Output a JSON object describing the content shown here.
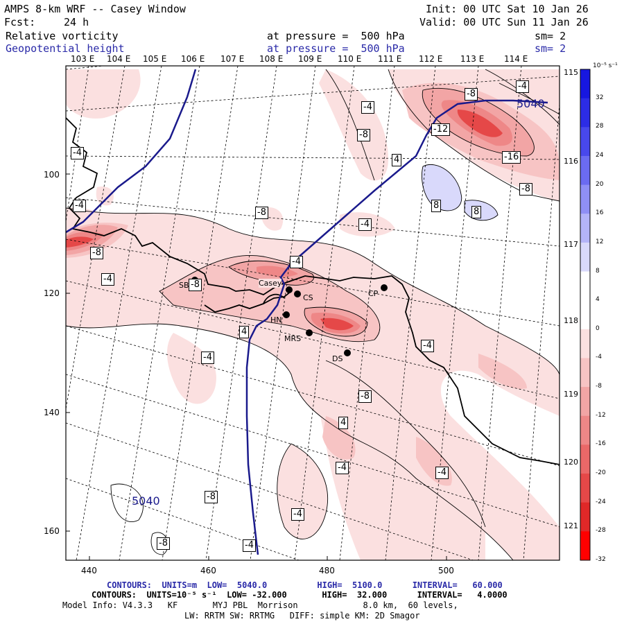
{
  "header": {
    "model_title": "AMPS 8-km WRF -- Casey Window",
    "init": "Init: 00 UTC Sat 10 Jan 26",
    "fcst_label": "Fcst:",
    "fcst_value": "24 h",
    "valid": "Valid: 00 UTC Sun 11 Jan 26",
    "field1_name": "Relative vorticity",
    "field1_level": "at pressure =  500 hPa",
    "field1_sm": "sm= 2",
    "field2_name": "Geopotential height",
    "field2_level": "at pressure =  500 hPa",
    "field2_sm": "sm= 2"
  },
  "axes": {
    "top_lon": [
      "103 E",
      "104 E",
      "105 E",
      "106 E",
      "107 E",
      "108 E",
      "109 E",
      "110 E",
      "111 E",
      "112 E",
      "113 E",
      "114 E"
    ],
    "right_lat": [
      "115 E",
      "116 E",
      "117 E",
      "118 E",
      "119 E",
      "120 E",
      "121 E"
    ],
    "left_y": [
      "100",
      "120",
      "140",
      "160"
    ],
    "bottom_x": [
      "440",
      "460",
      "480",
      "500"
    ]
  },
  "colorbar": {
    "units": "10⁻⁵ s⁻¹",
    "ticks": [
      "32",
      "28",
      "24",
      "20",
      "16",
      "12",
      "8",
      "4",
      "0",
      "-4",
      "-8",
      "-12",
      "-16",
      "-20",
      "-24",
      "-28",
      "-32"
    ],
    "colors": [
      "#1717e0",
      "#2c2ce6",
      "#4848ec",
      "#6b6bf1",
      "#8f8ff5",
      "#b4b4f8",
      "#d9d9fb",
      "#ffffff",
      "#ffffff",
      "#fbe0e0",
      "#f7c4c4",
      "#f2a5a5",
      "#ee8787",
      "#ea6868",
      "#e54848",
      "#e02828",
      "#ff0000"
    ]
  },
  "stations": [
    "Casey",
    "CS",
    "SB",
    "HN",
    "MRS",
    "DS",
    "CP"
  ],
  "contour_labels": [
    "-8",
    "-4",
    "5040",
    "-4",
    "-8",
    "-12",
    "4",
    "-16",
    "-8",
    "-4",
    "8",
    "8",
    "-4",
    "-8",
    "-4",
    "-8",
    "-4",
    "-8",
    "-4",
    "-4",
    "-4",
    "-8",
    "4",
    "-4",
    "-4",
    "5040",
    "-8",
    "-4",
    "-8",
    "4",
    "-4",
    "4",
    "5040"
  ],
  "footer": {
    "line1": "CONTOURS:  UNITS=m  LOW=  5040.0          HIGH=  5100.0      INTERVAL=   60.000",
    "line2": "CONTOURS:  UNITS=10⁻⁵ s⁻¹  LOW= -32.000       HIGH=  32.000      INTERVAL=   4.0000",
    "line3": "Model Info: V4.3.3   KF       MYJ PBL  Morrison             8.0 km,  60 levels,",
    "line4": "LW: RRTM SW: RRTMG   DIFF: simple KM: 2D Smagor"
  },
  "colors": {
    "height_contour": "#1a1a8c",
    "header_blue": "#2a2aa8"
  }
}
